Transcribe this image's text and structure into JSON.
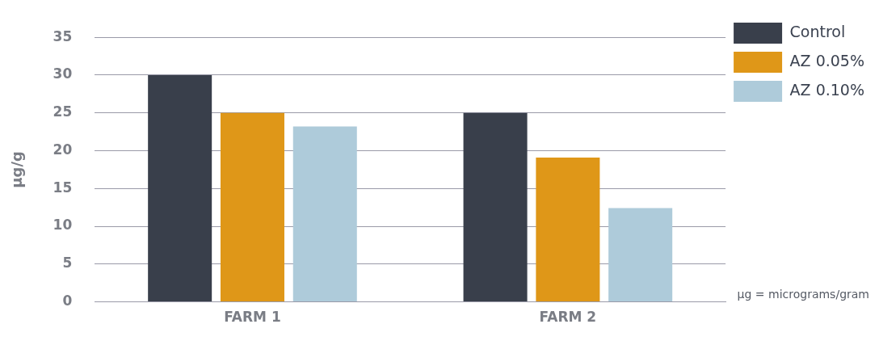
{
  "chart_data": {
    "type": "bar",
    "ylabel": "µg/g",
    "categories": [
      "FARM 1",
      "FARM 2"
    ],
    "series": [
      {
        "name": "Control",
        "color": "#393f4b",
        "values": [
          30,
          25
        ]
      },
      {
        "name": "AZ 0.05%",
        "color": "#df9718",
        "values": [
          25,
          19.1
        ]
      },
      {
        "name": "AZ 0.10%",
        "color": "#aecbda",
        "values": [
          23.2,
          12.4
        ]
      }
    ],
    "ylim": [
      0,
      35
    ],
    "yticks": [
      0,
      5,
      10,
      15,
      20,
      25,
      30,
      35
    ],
    "grid": "y",
    "legend": "right",
    "annotations": [
      "µg = micrograms/gram"
    ]
  }
}
